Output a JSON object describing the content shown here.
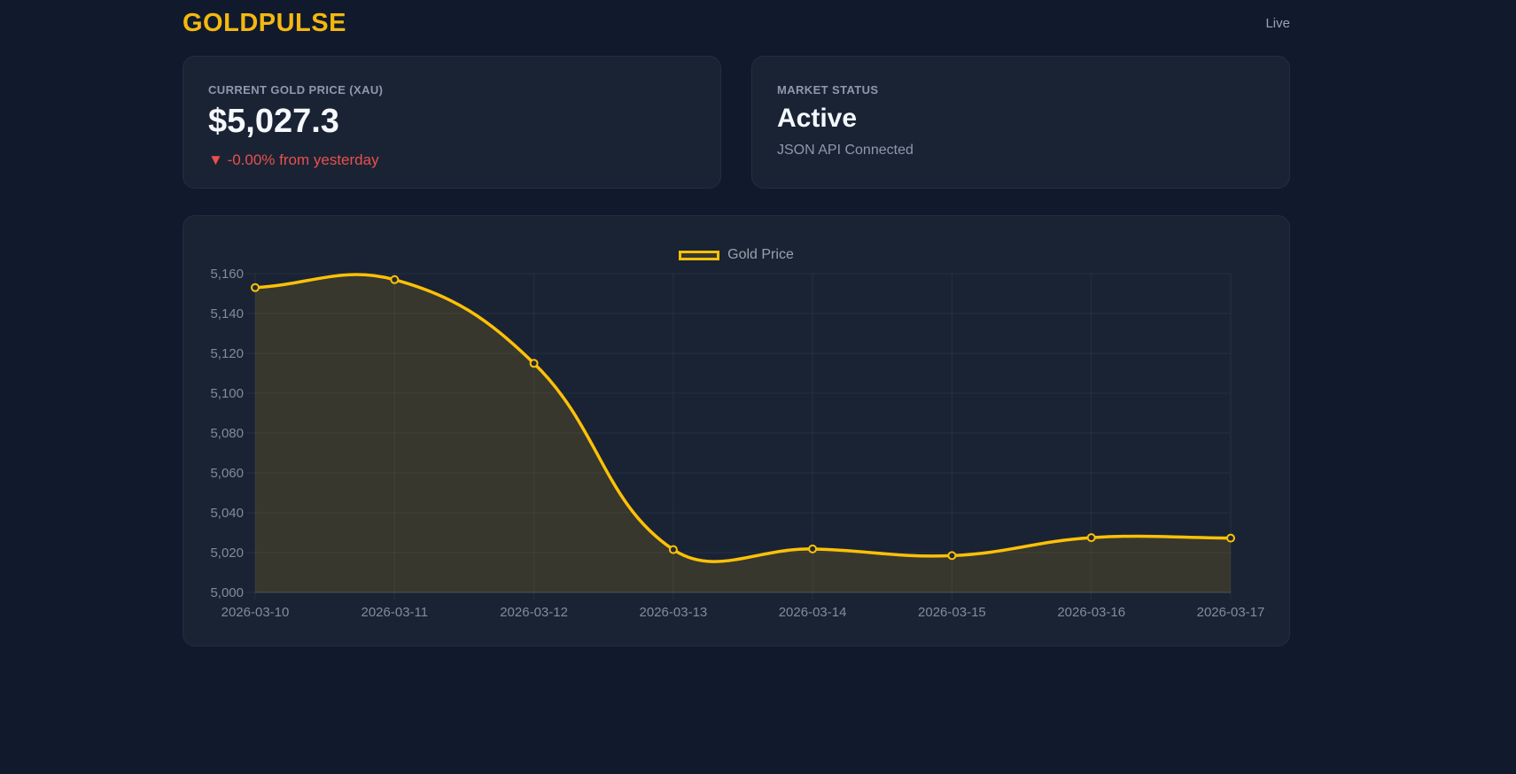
{
  "header": {
    "brand": "GOLDPULSE",
    "live_label": "Live"
  },
  "cards": {
    "price": {
      "label": "CURRENT GOLD PRICE (XAU)",
      "value": "$5,027.3",
      "change_icon": "▼",
      "change_text": "-0.00% from yesterday"
    },
    "status": {
      "label": "MARKET STATUS",
      "value": "Active",
      "sub": "JSON API Connected"
    }
  },
  "chart_data": {
    "type": "line",
    "title": "",
    "categories": [
      "2026-03-10",
      "2026-03-11",
      "2026-03-12",
      "2026-03-13",
      "2026-03-14",
      "2026-03-15",
      "2026-03-16",
      "2026-03-17"
    ],
    "series": [
      {
        "name": "Gold Price",
        "values": [
          5153,
          5157,
          5115,
          5021.5,
          5021.8,
          5018.5,
          5027.5,
          5027.3
        ]
      }
    ],
    "xlabel": "",
    "ylabel": "",
    "ylim": [
      5000,
      5160
    ],
    "ytick_step": 20,
    "grid": true,
    "legend_position": "top",
    "smoothing": 0.4,
    "line_color": "#fdc107",
    "fill_color": "rgba(255,193,7,0.13)",
    "point_style": "hollow-circle"
  },
  "colors": {
    "page_bg": "#111a2c",
    "card_bg": "#1a2334",
    "card_border": "#232e42",
    "brand": "#f4b810",
    "text_primary": "#f5f8fc",
    "text_muted": "#8d99ad",
    "negative": "#e8504d",
    "axis_label": "#828b9a",
    "legend_label": "#9aa1ac",
    "grid": "rgba(255,255,255,0.055)"
  }
}
